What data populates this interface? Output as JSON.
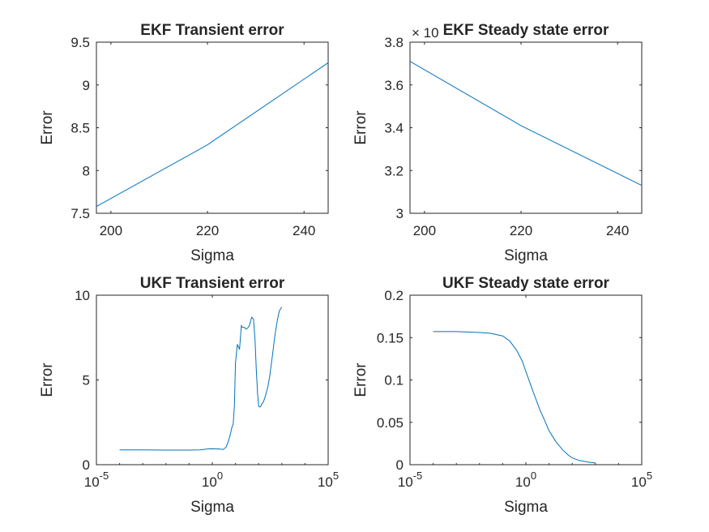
{
  "chart_data": [
    {
      "type": "line",
      "title": "EKF Transient error",
      "xlabel": "Sigma",
      "ylabel": "Error",
      "xscale": "linear",
      "xlim": [
        197,
        245
      ],
      "ylim": [
        7.5,
        9.5
      ],
      "xticks": [
        200,
        220,
        240
      ],
      "xtick_labels": [
        "200",
        "220",
        "240"
      ],
      "yticks": [
        7.5,
        8,
        8.5,
        9,
        9.5
      ],
      "ytick_labels": [
        "7.5",
        "8",
        "8.5",
        "9",
        "9.5"
      ],
      "grid": false,
      "series": [
        {
          "x": [
            197,
            220,
            245
          ],
          "y": [
            7.58,
            8.3,
            9.26
          ],
          "color": "#0072bd"
        }
      ]
    },
    {
      "type": "line",
      "title": "EKF Steady state error",
      "xlabel": "Sigma",
      "ylabel": "Error",
      "xscale": "linear",
      "xlim": [
        197,
        245
      ],
      "ylim": [
        3,
        3.8
      ],
      "exponent_label": "× 10",
      "xticks": [
        200,
        220,
        240
      ],
      "xtick_labels": [
        "200",
        "220",
        "240"
      ],
      "yticks": [
        3,
        3.2,
        3.4,
        3.6,
        3.8
      ],
      "ytick_labels": [
        "3",
        "3.2",
        "3.4",
        "3.6",
        "3.8"
      ],
      "grid": false,
      "series": [
        {
          "x": [
            197,
            220,
            245
          ],
          "y": [
            3.71,
            3.41,
            3.13
          ],
          "color": "#0072bd"
        }
      ]
    },
    {
      "type": "line",
      "title": "UKF Transient error",
      "xlabel": "Sigma",
      "ylabel": "Error",
      "xscale": "log",
      "xlim": [
        1e-05,
        100000
      ],
      "ylim": [
        0,
        10
      ],
      "xticks": [
        1e-05,
        1,
        100000
      ],
      "xtick_labels": [
        {
          "base": "10",
          "exp": "-5"
        },
        {
          "base": "10",
          "exp": "0"
        },
        {
          "base": "10",
          "exp": "5"
        }
      ],
      "yticks": [
        0,
        5,
        10
      ],
      "ytick_labels": [
        "0",
        "5",
        "10"
      ],
      "grid": false,
      "series": [
        {
          "color": "#0072bd",
          "x": [
            0.0001,
            0.001,
            0.01,
            0.1,
            0.3,
            0.6,
            1,
            2,
            3,
            4,
            5,
            6,
            7,
            8,
            9,
            10,
            12,
            15,
            18,
            20,
            25,
            28,
            30,
            35,
            40,
            50,
            60,
            70,
            80,
            90,
            100,
            110,
            120,
            130,
            140,
            150,
            160,
            180,
            200,
            250,
            300,
            400,
            500,
            600,
            700,
            800,
            1000
          ],
          "y": [
            0.87,
            0.87,
            0.86,
            0.86,
            0.87,
            0.93,
            0.94,
            0.93,
            0.9,
            1.05,
            1.4,
            1.8,
            2.2,
            2.4,
            3.5,
            6,
            7.1,
            6.8,
            8.2,
            8.1,
            8.1,
            8.0,
            8.0,
            8.1,
            8.2,
            8.7,
            8.6,
            7.3,
            5.5,
            4.2,
            3.45,
            3.4,
            3.42,
            3.5,
            3.6,
            3.65,
            3.7,
            3.9,
            4.1,
            4.6,
            5.2,
            6.5,
            7.6,
            8.3,
            8.8,
            9.1,
            9.3
          ]
        }
      ]
    },
    {
      "type": "line",
      "title": "UKF Steady state error",
      "xlabel": "Sigma",
      "ylabel": "Error",
      "xscale": "log",
      "xlim": [
        1e-05,
        100000
      ],
      "ylim": [
        0,
        0.2
      ],
      "xticks": [
        1e-05,
        1,
        100000
      ],
      "xtick_labels": [
        {
          "base": "10",
          "exp": "-5"
        },
        {
          "base": "10",
          "exp": "0"
        },
        {
          "base": "10",
          "exp": "5"
        }
      ],
      "yticks": [
        0,
        0.05,
        0.1,
        0.15,
        0.2
      ],
      "ytick_labels": [
        "0",
        "0.05",
        "0.1",
        "0.15",
        "0.2"
      ],
      "grid": false,
      "series": [
        {
          "color": "#0072bd",
          "x": [
            0.0001,
            0.001,
            0.01,
            0.03,
            0.1,
            0.2,
            0.4,
            0.7,
            1,
            2,
            4,
            7,
            10,
            20,
            40,
            70,
            100,
            200,
            500,
            1000
          ],
          "y": [
            0.157,
            0.157,
            0.156,
            0.155,
            0.152,
            0.146,
            0.135,
            0.122,
            0.11,
            0.087,
            0.065,
            0.05,
            0.04,
            0.027,
            0.017,
            0.011,
            0.008,
            0.005,
            0.003,
            0.002
          ]
        }
      ]
    }
  ]
}
